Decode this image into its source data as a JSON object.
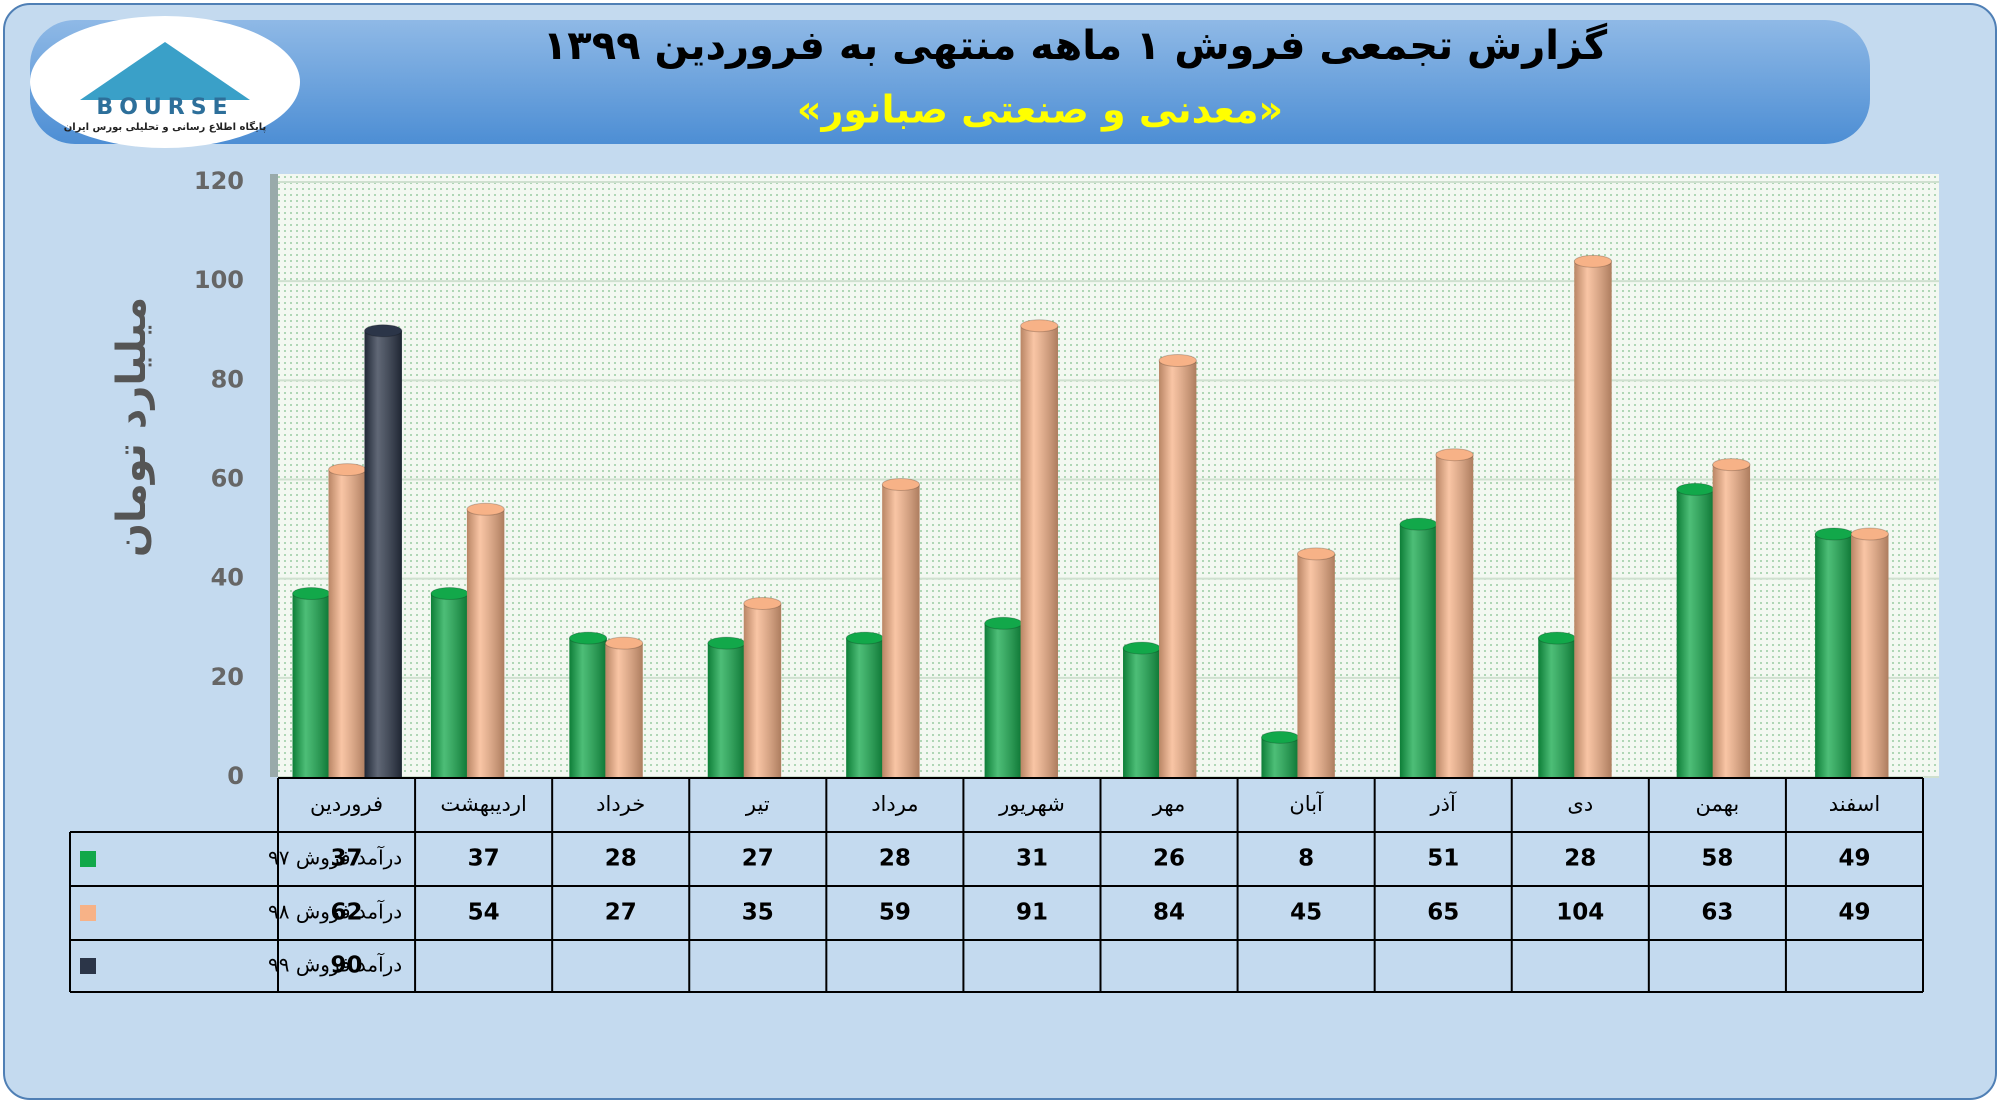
{
  "logo": {
    "text": "BOURSE",
    "caption": "پایگاه اطلاع رسانی و تحلیلی بورس ایران"
  },
  "chart_data": {
    "type": "bar",
    "title": "گزارش تجمعی فروش ۱ ماهه منتهی به فروردین ۱۳۹۹",
    "subtitle": "«معدنی و صنعتی صبانور»",
    "y_label": "میلیارد تومان",
    "categories": [
      "فروردین",
      "اردیبهشت",
      "خرداد",
      "تیر",
      "مرداد",
      "شهریور",
      "مهر",
      "آبان",
      "آذر",
      "دی",
      "بهمن",
      "اسفند"
    ],
    "series": [
      {
        "name": "درآمد فروش ۹۷",
        "color": "#12a84a",
        "values": [
          37,
          37,
          28,
          27,
          28,
          31,
          26,
          8,
          51,
          28,
          58,
          49
        ]
      },
      {
        "name": "درآمد فروش ۹۸",
        "color": "#f7b287",
        "values": [
          62,
          54,
          27,
          35,
          59,
          91,
          84,
          45,
          65,
          104,
          63,
          49
        ]
      },
      {
        "name": "درآمد فروش ۹۹",
        "color": "#2b3548",
        "values": [
          90,
          null,
          null,
          null,
          null,
          null,
          null,
          null,
          null,
          null,
          null,
          null
        ]
      }
    ],
    "ylim": [
      0,
      120
    ],
    "yticks": [
      0,
      20,
      40,
      60,
      80,
      100,
      120
    ],
    "grid": true
  }
}
